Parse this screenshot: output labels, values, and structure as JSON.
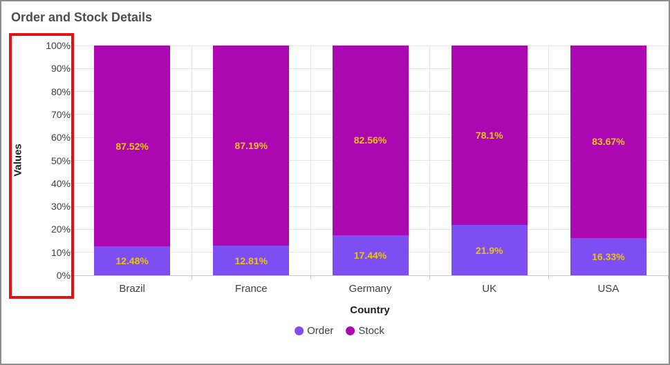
{
  "title": "Order and Stock Details",
  "colors": {
    "order_series": "#7d4ff2",
    "stock_series": "#ac08b2",
    "data_label": "#e8c414",
    "highlight_box": "#e11414"
  },
  "chart_data": {
    "type": "bar",
    "stacked": true,
    "stacked_100_percent": true,
    "title": "Order and Stock Details",
    "xlabel": "Country",
    "ylabel": "Values",
    "ylim": [
      0,
      100
    ],
    "y_tick_step": 10,
    "y_ticks": [
      "0%",
      "10%",
      "20%",
      "30%",
      "40%",
      "50%",
      "60%",
      "70%",
      "80%",
      "90%",
      "100%"
    ],
    "categories": [
      "Brazil",
      "France",
      "Germany",
      "UK",
      "USA"
    ],
    "series": [
      {
        "name": "Order",
        "color": "#7d4ff2",
        "values": [
          12.48,
          12.81,
          17.44,
          21.9,
          16.33
        ],
        "labels": [
          "12.48%",
          "12.81%",
          "17.44%",
          "21.9%",
          "16.33%"
        ]
      },
      {
        "name": "Stock",
        "color": "#ac08b2",
        "values": [
          87.52,
          87.19,
          82.56,
          78.1,
          83.67
        ],
        "labels": [
          "87.52%",
          "87.19%",
          "82.56%",
          "78.1%",
          "83.67%"
        ]
      }
    ],
    "grid": true,
    "legend_position": "bottom"
  }
}
